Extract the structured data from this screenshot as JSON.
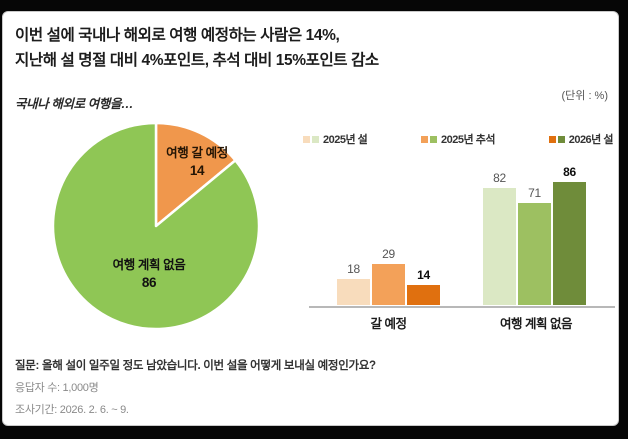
{
  "title": {
    "line1": "이번 설에 국내나 해외로 여행 예정하는 사람은 14%,",
    "line2": "지난해 설 명절 대비 4%포인트, 추석 대비 15%포인트 감소"
  },
  "unit_label": "(단위 : %)",
  "chart_data": [
    {
      "type": "pie",
      "title": "국내나 해외로 여행을…",
      "slices": [
        {
          "label": "여행 갈 예정",
          "value": 14,
          "color": "#F0974C"
        },
        {
          "label": "여행 계획 없음",
          "value": 86,
          "color": "#8FC655"
        }
      ],
      "start_angle": "12 o'clock, clockwise",
      "divider_color": "#ffffff"
    },
    {
      "type": "bar",
      "categories": [
        "갈 예정",
        "여행 계획 없음"
      ],
      "series": [
        {
          "name": "2025년 설",
          "values": [
            18,
            82
          ],
          "colors": [
            "#F8DCBC",
            "#DBE8C4"
          ]
        },
        {
          "name": "2025년 추석",
          "values": [
            29,
            71
          ],
          "colors": [
            "#F3A159",
            "#9DC061"
          ]
        },
        {
          "name": "2026년 설",
          "values": [
            14,
            86
          ],
          "colors": [
            "#E0700F",
            "#6F8C3A"
          ],
          "emphasized": true
        }
      ],
      "ylim": [
        0,
        100
      ],
      "legend_position": "top",
      "grid": false
    }
  ],
  "footnotes": {
    "question": "질문: 올해 설이 일주일 정도 남았습니다. 이번 설을 어떻게 보내실 예정인가요?",
    "respondents": "응답자 수: 1,000명",
    "period": "조사기간: 2026. 2. 6. ~ 9."
  }
}
